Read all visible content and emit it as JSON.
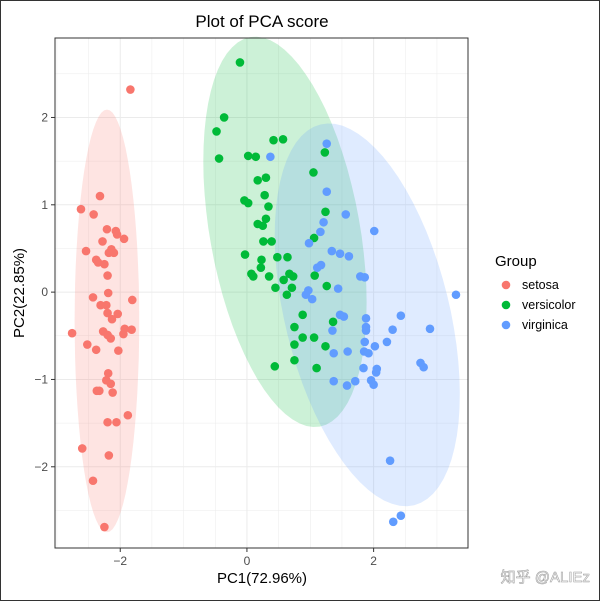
{
  "chart_data": {
    "type": "scatter",
    "title": "Plot of PCA score",
    "xlabel": "PC1(72.96%)",
    "ylabel": "PC2(22.85%)",
    "xlim": [
      -3.03,
      3.49
    ],
    "ylim": [
      -2.93,
      2.91
    ],
    "xticks": [
      -2,
      0,
      2
    ],
    "yticks": [
      -2,
      -1,
      0,
      1,
      2
    ],
    "grid": true,
    "legend": {
      "title": "Group",
      "placement": "right"
    },
    "series": [
      {
        "name": "setosa",
        "color": "#F8766D",
        "ellipse": {
          "center": [
            -2.21,
            -0.33
          ],
          "axis1": [
            0,
            2.42
          ],
          "axis2": [
            0.51,
            0
          ]
        },
        "points": [
          [
            -1.84,
            2.32
          ],
          [
            -2.32,
            1.1
          ],
          [
            -2.62,
            0.95
          ],
          [
            -2.42,
            0.89
          ],
          [
            -2.21,
            0.72
          ],
          [
            -2.07,
            0.7
          ],
          [
            -2.05,
            0.66
          ],
          [
            -1.94,
            0.61
          ],
          [
            -2.28,
            0.58
          ],
          [
            -2.54,
            0.47
          ],
          [
            -2.14,
            0.49
          ],
          [
            -2.1,
            0.45
          ],
          [
            -2.18,
            0.45
          ],
          [
            -2.38,
            0.37
          ],
          [
            -2.35,
            0.34
          ],
          [
            -2.25,
            0.32
          ],
          [
            -2.2,
            0.19
          ],
          [
            -2.19,
            -0.01
          ],
          [
            -2.43,
            -0.06
          ],
          [
            -1.81,
            -0.09
          ],
          [
            -2.31,
            -0.15
          ],
          [
            -2.22,
            -0.15
          ],
          [
            -2.2,
            -0.24
          ],
          [
            -2.04,
            -0.25
          ],
          [
            -2.13,
            -0.31
          ],
          [
            -2.76,
            -0.47
          ],
          [
            -2.27,
            -0.45
          ],
          [
            -2.2,
            -0.49
          ],
          [
            -2.15,
            -0.53
          ],
          [
            -1.93,
            -0.42
          ],
          [
            -1.82,
            -0.43
          ],
          [
            -1.95,
            -0.48
          ],
          [
            -2.52,
            -0.6
          ],
          [
            -2.38,
            -0.66
          ],
          [
            -2.03,
            -0.67
          ],
          [
            -2.19,
            -0.93
          ],
          [
            -2.22,
            -1.01
          ],
          [
            -2.15,
            -1.05
          ],
          [
            -2.37,
            -1.13
          ],
          [
            -2.33,
            -1.13
          ],
          [
            -2.12,
            -1.15
          ],
          [
            -1.88,
            -1.41
          ],
          [
            -2.2,
            -1.49
          ],
          [
            -2.06,
            -1.49
          ],
          [
            -2.6,
            -1.79
          ],
          [
            -2.18,
            -1.87
          ],
          [
            -2.43,
            -2.16
          ],
          [
            -2.25,
            -2.69
          ]
        ]
      },
      {
        "name": "versicolor",
        "color": "#00BA38",
        "ellipse": {
          "center": [
            0.6,
            0.69
          ],
          "axis1": [
            -0.55,
            2.23
          ],
          "axis2": [
            1.166,
            0.152
          ]
        },
        "points": [
          [
            -0.11,
            2.63
          ],
          [
            -0.36,
            2.0
          ],
          [
            -0.48,
            1.84
          ],
          [
            0.42,
            1.74
          ],
          [
            0.57,
            1.75
          ],
          [
            -0.44,
            1.53
          ],
          [
            0.02,
            1.56
          ],
          [
            0.14,
            1.55
          ],
          [
            1.23,
            1.6
          ],
          [
            1.05,
            1.37
          ],
          [
            0.17,
            1.28
          ],
          [
            0.3,
            1.31
          ],
          [
            0.28,
            1.11
          ],
          [
            -0.04,
            1.05
          ],
          [
            0.02,
            1.02
          ],
          [
            0.34,
            0.98
          ],
          [
            1.24,
            0.92
          ],
          [
            0.3,
            0.84
          ],
          [
            0.17,
            0.78
          ],
          [
            0.25,
            0.76
          ],
          [
            1.06,
            0.62
          ],
          [
            0.26,
            0.58
          ],
          [
            0.39,
            0.58
          ],
          [
            -0.03,
            0.43
          ],
          [
            0.48,
            0.4
          ],
          [
            0.64,
            0.4
          ],
          [
            0.23,
            0.37
          ],
          [
            0.22,
            0.28
          ],
          [
            0.07,
            0.21
          ],
          [
            0.1,
            0.18
          ],
          [
            0.35,
            0.18
          ],
          [
            0.67,
            0.21
          ],
          [
            0.73,
            0.18
          ],
          [
            0.58,
            0.14
          ],
          [
            1.07,
            0.19
          ],
          [
            0.45,
            0.05
          ],
          [
            0.71,
            0.05
          ],
          [
            1.26,
            0.07
          ],
          [
            0.63,
            -0.03
          ],
          [
            0.88,
            -0.26
          ],
          [
            1.36,
            -0.34
          ],
          [
            0.75,
            -0.4
          ],
          [
            0.88,
            -0.52
          ],
          [
            1.06,
            -0.52
          ],
          [
            0.75,
            -0.6
          ],
          [
            1.24,
            -0.62
          ],
          [
            0.75,
            -0.78
          ],
          [
            0.44,
            -0.85
          ],
          [
            1.1,
            -0.87
          ]
        ]
      },
      {
        "name": "virginica",
        "color": "#619CFF",
        "ellipse": {
          "center": [
            1.9,
            -0.26
          ],
          "axis1": [
            -0.74,
            2.18
          ],
          "axis2": [
            1.26,
            0.226
          ]
        },
        "points": [
          [
            1.26,
            1.7
          ],
          [
            0.37,
            1.55
          ],
          [
            1.26,
            1.15
          ],
          [
            1.56,
            0.89
          ],
          [
            1.21,
            0.8
          ],
          [
            2.01,
            0.7
          ],
          [
            1.16,
            0.69
          ],
          [
            0.98,
            0.56
          ],
          [
            1.34,
            0.47
          ],
          [
            1.47,
            0.44
          ],
          [
            1.61,
            0.41
          ],
          [
            1.11,
            0.28
          ],
          [
            1.17,
            0.31
          ],
          [
            1.79,
            0.18
          ],
          [
            1.86,
            0.17
          ],
          [
            0.97,
            0.02
          ],
          [
            0.93,
            -0.03
          ],
          [
            1.03,
            -0.08
          ],
          [
            1.44,
            0.04
          ],
          [
            3.3,
            -0.03
          ],
          [
            1.47,
            -0.26
          ],
          [
            1.53,
            -0.28
          ],
          [
            1.88,
            -0.3
          ],
          [
            2.43,
            -0.27
          ],
          [
            1.88,
            -0.4
          ],
          [
            2.3,
            -0.43
          ],
          [
            2.89,
            -0.42
          ],
          [
            1.35,
            -0.44
          ],
          [
            1.88,
            -0.44
          ],
          [
            1.86,
            -0.57
          ],
          [
            2.02,
            -0.62
          ],
          [
            2.21,
            -0.57
          ],
          [
            1.37,
            -0.7
          ],
          [
            1.59,
            -0.68
          ],
          [
            1.85,
            -0.68
          ],
          [
            1.92,
            -0.7
          ],
          [
            2.74,
            -0.81
          ],
          [
            2.79,
            -0.86
          ],
          [
            1.84,
            -0.87
          ],
          [
            2.05,
            -0.88
          ],
          [
            2.04,
            -0.92
          ],
          [
            1.37,
            -1.02
          ],
          [
            1.58,
            -1.07
          ],
          [
            1.71,
            -1.02
          ],
          [
            1.96,
            -1.01
          ],
          [
            2.0,
            -1.06
          ],
          [
            2.26,
            -1.93
          ],
          [
            2.43,
            -2.56
          ],
          [
            2.31,
            -2.63
          ]
        ]
      }
    ]
  },
  "watermark": "知乎 @ALIEz"
}
